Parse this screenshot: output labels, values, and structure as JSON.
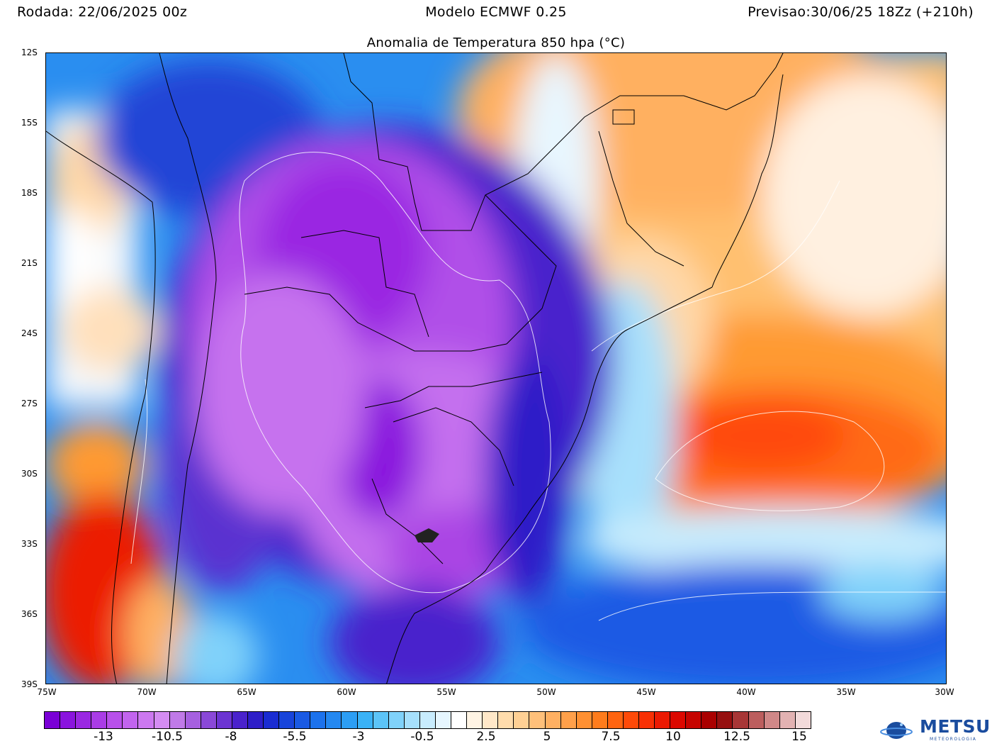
{
  "header": {
    "run": "Rodada: 22/06/2025 00z",
    "model": "Modelo ECMWF 0.25",
    "forecast": "Previsao:30/06/25 18Zz (+210h)"
  },
  "title": "Anomalia de Temperatura 850 hpa (°C)",
  "map": {
    "lat_labels": [
      "12S",
      "15S",
      "18S",
      "21S",
      "24S",
      "27S",
      "30S",
      "33S",
      "36S",
      "39S"
    ],
    "lon_labels": [
      "75W",
      "70W",
      "65W",
      "60W",
      "55W",
      "50W",
      "45W",
      "40W",
      "35W",
      "30W"
    ],
    "lon_range": [
      -75,
      -30
    ],
    "lat_range": [
      -39,
      -12
    ]
  },
  "colorbar": {
    "colors": [
      "#7a00d6",
      "#8a14de",
      "#9a28e2",
      "#aa3ce6",
      "#b850ea",
      "#c264ee",
      "#cc78f0",
      "#d48cf2",
      "#c07ae8",
      "#a660e0",
      "#8a48d8",
      "#6c34d2",
      "#4a22cc",
      "#2e1ec8",
      "#1a2cd2",
      "#1844da",
      "#1a5ae4",
      "#1c72ec",
      "#2488f0",
      "#2c9ef4",
      "#3ab2f6",
      "#5cc4f8",
      "#80d2fa",
      "#a6e0fc",
      "#c8ecfd",
      "#e6f6fe",
      "#ffffff",
      "#fff4e4",
      "#ffe8c8",
      "#ffdcac",
      "#ffd094",
      "#ffc07a",
      "#ffb062",
      "#ffa04a",
      "#ff9032",
      "#ff7c1c",
      "#ff6410",
      "#ff4a08",
      "#f83004",
      "#ec1a02",
      "#dc0800",
      "#c60400",
      "#aa0000",
      "#961010",
      "#a83636",
      "#bc5e5e",
      "#d08888",
      "#e2b2b2",
      "#f2dada"
    ],
    "labels": [
      "-13",
      "-10.5",
      "-8",
      "-5.5",
      "-3",
      "-0.5",
      "2.5",
      "5",
      "7.5",
      "10",
      "12.5",
      "15"
    ]
  },
  "logo": {
    "text": "METSUL",
    "sub": "METEOROLOGIA"
  }
}
